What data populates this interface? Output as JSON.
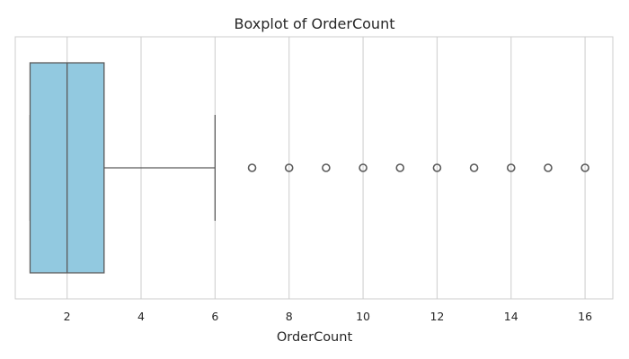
{
  "chart_data": {
    "type": "boxplot",
    "title": "Boxplot of OrderCount",
    "xlabel": "OrderCount",
    "ylabel": "",
    "orientation": "horizontal",
    "xlim": [
      0.6,
      16.75
    ],
    "xticks": [
      2,
      4,
      6,
      8,
      10,
      12,
      14,
      16
    ],
    "grid": "vertical",
    "box": {
      "whisker_low": 1,
      "q1": 1,
      "median": 2,
      "q3": 3,
      "whisker_high": 6,
      "outliers": [
        7,
        8,
        9,
        10,
        11,
        12,
        13,
        14,
        15,
        16
      ]
    },
    "colors": {
      "box_fill": "#92c9e0",
      "line": "#5a5a5a",
      "grid": "#d4d4d4",
      "frame": "#cccccc"
    }
  }
}
